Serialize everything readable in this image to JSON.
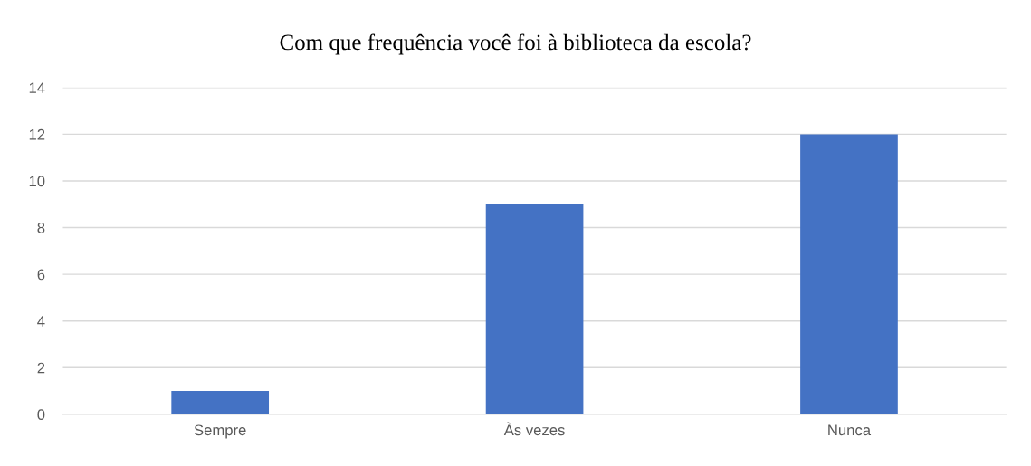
{
  "chart_data": {
    "type": "bar",
    "title": "Com que frequência você foi à biblioteca da escola?",
    "categories": [
      "Sempre",
      "Às vezes",
      "Nunca"
    ],
    "values": [
      1,
      9,
      12
    ],
    "color": "#4472c4",
    "ylim": [
      0,
      14
    ],
    "yticks": [
      0,
      2,
      4,
      6,
      8,
      10,
      12,
      14
    ],
    "grid": "y",
    "legend": false
  }
}
